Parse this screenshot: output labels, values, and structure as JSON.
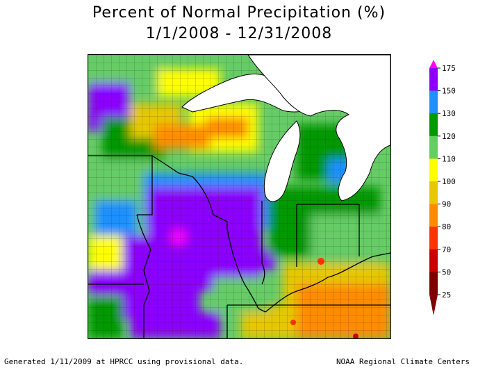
{
  "title_line1": "Percent of Normal Precipitation (%)",
  "title_line2": "1/1/2008 - 12/31/2008",
  "legend": {
    "ticks": [
      "175",
      "150",
      "130",
      "120",
      "110",
      "100",
      "90",
      "80",
      "70",
      "50",
      "25"
    ],
    "colors": [
      "#ff00ff",
      "#8b00ff",
      "#1e90ff",
      "#009900",
      "#66cc66",
      "#ffff00",
      "#e6c800",
      "#ff8c00",
      "#ff3300",
      "#cc0000",
      "#800000"
    ]
  },
  "footer_left": "Generated 1/11/2009 at HPRCC using provisional data.",
  "footer_right": "NOAA Regional Climate Centers"
}
